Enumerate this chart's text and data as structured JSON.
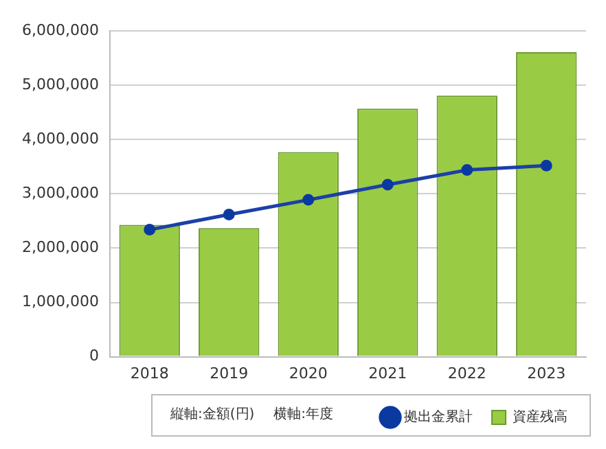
{
  "chart_data": {
    "type": "bar",
    "annotations": [
      "縦軸:金額(円)",
      "横軸:年度"
    ],
    "categories": [
      "2018",
      "2019",
      "2020",
      "2021",
      "2022",
      "2023"
    ],
    "series": [
      {
        "name": "資産残高",
        "color": "#9acb45",
        "values": [
          2430000,
          2370000,
          3770000,
          4570000,
          4810000,
          5610000
        ]
      },
      {
        "name": "拠出金累計",
        "type": "line",
        "color": "#1c3fa8",
        "marker": "circle",
        "values": [
          2340000,
          2620000,
          2890000,
          3170000,
          3440000,
          3520000
        ]
      }
    ],
    "ylim": [
      0,
      6000000
    ],
    "yticks": [
      0,
      {
        "value": 1000000,
        "label": "1,000,000"
      },
      {
        "value": 2000000,
        "label": "2,000,000"
      },
      {
        "value": 3000000,
        "label": "3,000,000"
      },
      {
        "value": 4000000,
        "label": "4,000,000"
      },
      {
        "value": 5000000,
        "label": "5,000,000"
      },
      {
        "value": 6000000,
        "label": "6,000,000"
      }
    ],
    "grid": "y",
    "legend": "bottom"
  }
}
